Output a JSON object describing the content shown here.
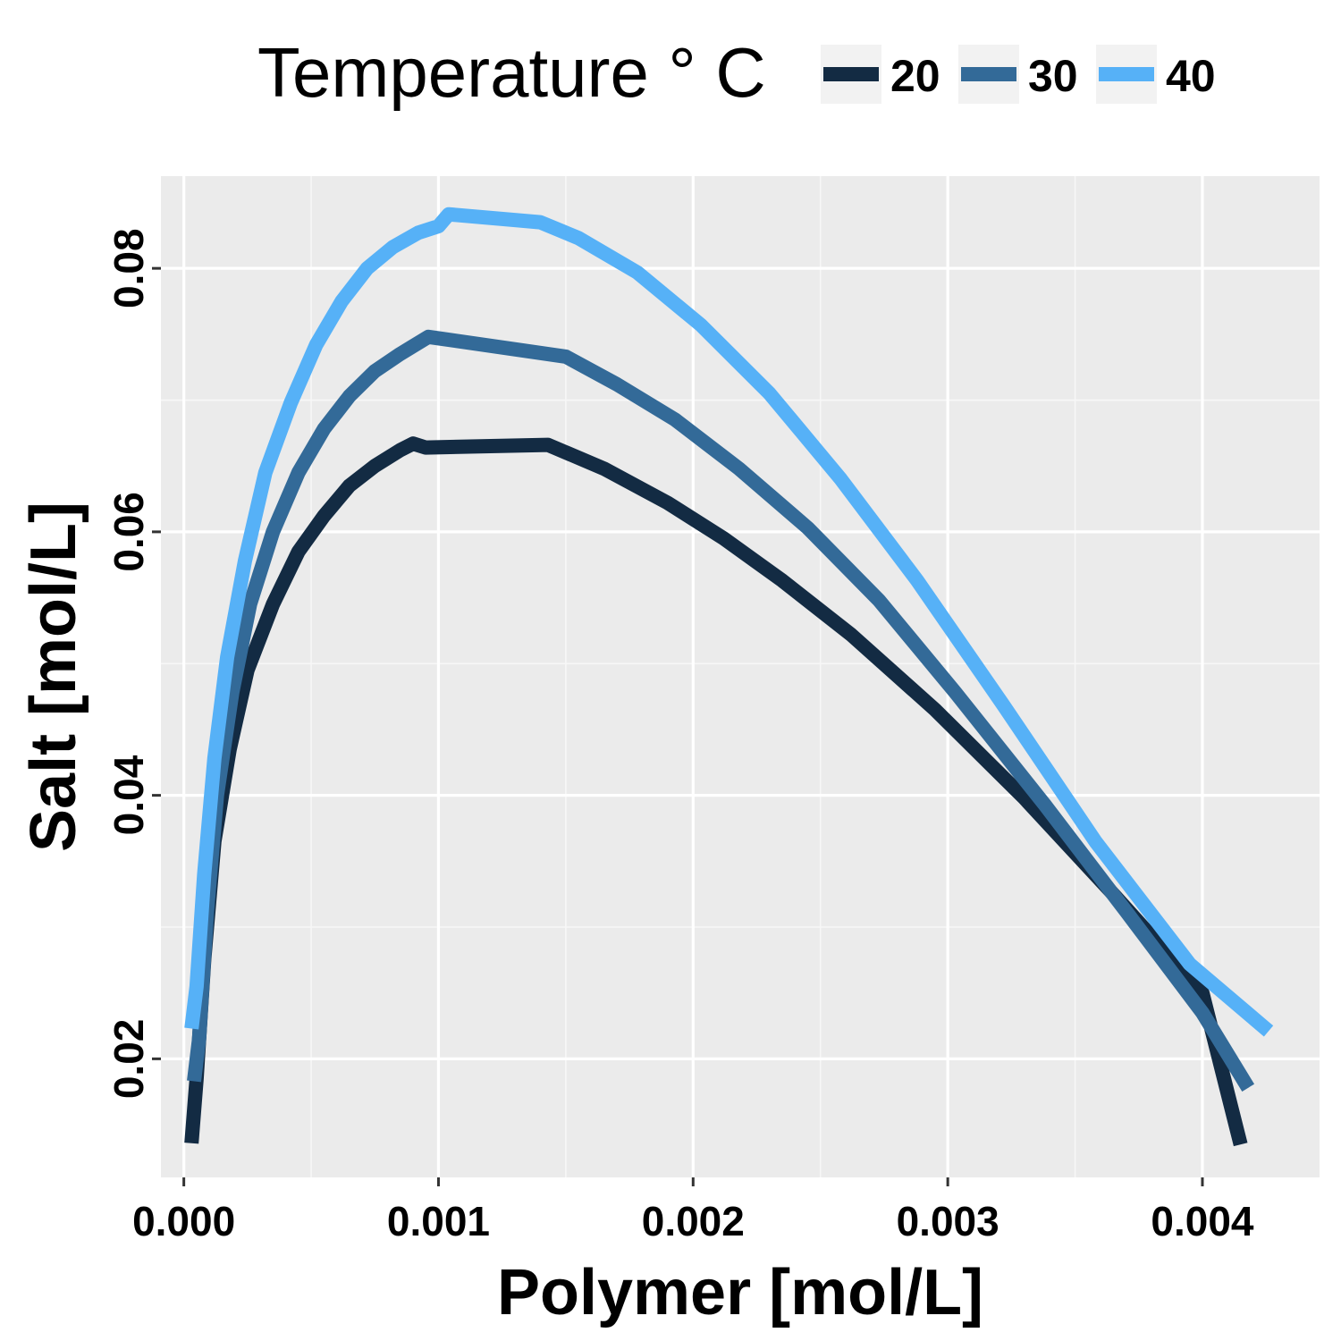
{
  "chart_data": {
    "type": "line",
    "xlabel": "Polymer [mol/L]",
    "ylabel": "Salt [mol/L]",
    "xlim": [
      -9e-05,
      0.00446
    ],
    "ylim": [
      0.011,
      0.087
    ],
    "x_ticks": [
      0.0,
      0.001,
      0.002,
      0.003,
      0.004
    ],
    "x_tick_labels": [
      "0.000",
      "0.001",
      "0.002",
      "0.003",
      "0.004"
    ],
    "y_ticks": [
      0.02,
      0.04,
      0.06,
      0.08
    ],
    "y_tick_labels": [
      "0.02",
      "0.04",
      "0.06",
      "0.08"
    ],
    "grid": true,
    "legend": {
      "title": "Temperature ° C",
      "position": "top"
    },
    "series": [
      {
        "name": "20",
        "color": "#132b43",
        "x": [
          3e-05,
          5e-05,
          8e-05,
          0.00012,
          0.00018,
          0.00025,
          0.00035,
          0.00045,
          0.00055,
          0.00065,
          0.00075,
          0.00085,
          0.0009,
          0.00095,
          0.00143,
          0.00165,
          0.0019,
          0.00212,
          0.00235,
          0.00262,
          0.00295,
          0.0033,
          0.00365,
          0.004,
          0.00415
        ],
        "y": [
          0.0136,
          0.0185,
          0.0275,
          0.0365,
          0.0435,
          0.0495,
          0.0545,
          0.0585,
          0.0612,
          0.0635,
          0.065,
          0.0662,
          0.0667,
          0.0664,
          0.0666,
          0.0648,
          0.0622,
          0.0595,
          0.0563,
          0.0522,
          0.0465,
          0.0398,
          0.0325,
          0.025,
          0.0135
        ]
      },
      {
        "name": "30",
        "color": "#336a98",
        "x": [
          4e-05,
          6e-05,
          9e-05,
          0.00013,
          0.00019,
          0.00026,
          0.00035,
          0.00045,
          0.00055,
          0.00065,
          0.00075,
          0.00085,
          0.00096,
          0.0015,
          0.0017,
          0.00193,
          0.00218,
          0.00245,
          0.00273,
          0.00303,
          0.00338,
          0.0037,
          0.004,
          0.00418
        ],
        "y": [
          0.0183,
          0.0215,
          0.031,
          0.04,
          0.0478,
          0.0545,
          0.06,
          0.0645,
          0.0678,
          0.0703,
          0.0722,
          0.0735,
          0.0748,
          0.0733,
          0.0712,
          0.0685,
          0.0648,
          0.0603,
          0.0548,
          0.0478,
          0.0393,
          0.0312,
          0.0235,
          0.0178
        ]
      },
      {
        "name": "40",
        "color": "#56b1f7",
        "x": [
          3e-05,
          5e-05,
          8e-05,
          0.00012,
          0.00017,
          0.00024,
          0.00032,
          0.00042,
          0.00052,
          0.00062,
          0.00072,
          0.00082,
          0.00092,
          0.001,
          0.00104,
          0.0014,
          0.00155,
          0.00178,
          0.00203,
          0.0023,
          0.00258,
          0.00288,
          0.00322,
          0.00358,
          0.00395,
          0.00426
        ],
        "y": [
          0.0223,
          0.0255,
          0.034,
          0.0428,
          0.0505,
          0.0578,
          0.0645,
          0.0698,
          0.0742,
          0.0775,
          0.08,
          0.0816,
          0.0827,
          0.0832,
          0.0841,
          0.0835,
          0.0823,
          0.0797,
          0.0757,
          0.0705,
          0.064,
          0.0563,
          0.0468,
          0.0365,
          0.0272,
          0.0221
        ]
      }
    ]
  }
}
